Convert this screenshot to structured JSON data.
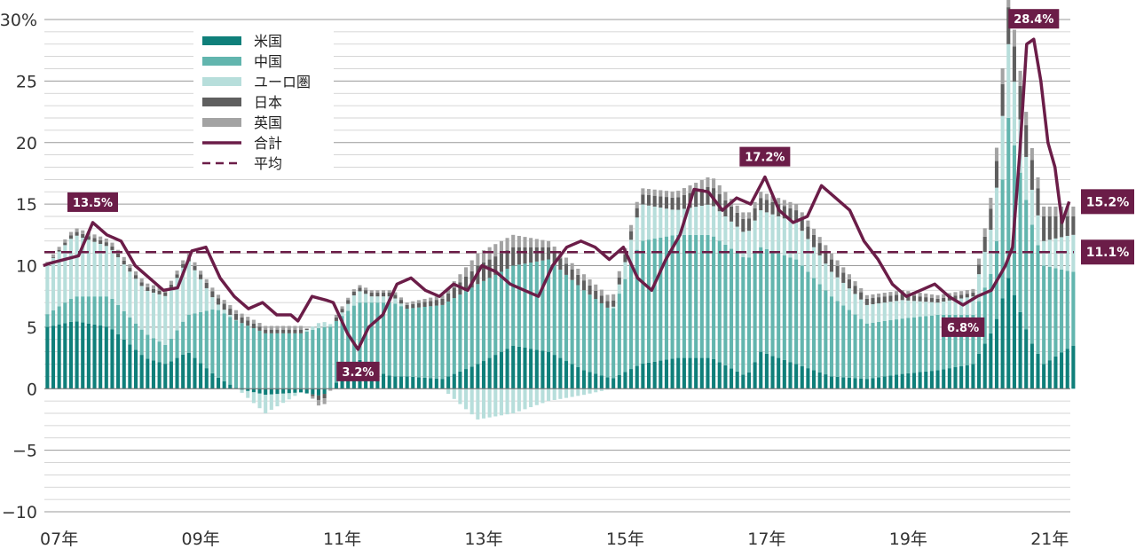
{
  "chart_data": {
    "type": "bar",
    "stacked": true,
    "y_unit_label": "30%",
    "ylim": [
      -10,
      30
    ],
    "yticks": [
      "30%",
      "25",
      "20",
      "15",
      "10",
      "5",
      "0",
      "−5",
      "−10"
    ],
    "ytick_values": [
      30,
      25,
      20,
      15,
      10,
      5,
      0,
      -5,
      -10
    ],
    "xtick_labels": [
      "07年",
      "09年",
      "11年",
      "13年",
      "15年",
      "17年",
      "19年",
      "21年"
    ],
    "xtick_years": [
      2007,
      2009,
      2011,
      2013,
      2015,
      2017,
      2019,
      2021
    ],
    "x_start": "2006-12",
    "x_end": "2021-06",
    "grid": true,
    "legend_position": "top-left",
    "colors": {
      "us": "#0f7f7a",
      "china": "#62b5ae",
      "euro": "#b7dedb",
      "japan": "#5f5f5f",
      "uk": "#a3a3a3",
      "total": "#6b1d48",
      "average": "#6b1d48",
      "callout_bg": "#6b1d48"
    },
    "legend": [
      {
        "key": "us",
        "label": "米国",
        "style": "bar"
      },
      {
        "key": "china",
        "label": "中国",
        "style": "bar"
      },
      {
        "key": "euro",
        "label": "ユーロ圏",
        "style": "bar"
      },
      {
        "key": "japan",
        "label": "日本",
        "style": "bar"
      },
      {
        "key": "uk",
        "label": "英国",
        "style": "bar"
      },
      {
        "key": "total",
        "label": "合計",
        "style": "line"
      },
      {
        "key": "average",
        "label": "平均",
        "style": "dashed"
      }
    ],
    "series": [
      {
        "key": "us",
        "name": "米国",
        "anchors": [
          [
            2006.9,
            5.0
          ],
          [
            2007.3,
            5.5
          ],
          [
            2007.8,
            5.0
          ],
          [
            2008.3,
            2.5
          ],
          [
            2008.6,
            2.0
          ],
          [
            2008.9,
            3.0
          ],
          [
            2009.3,
            1.0
          ],
          [
            2009.6,
            0.0
          ],
          [
            2010.0,
            -0.5
          ],
          [
            2010.5,
            -0.3
          ],
          [
            2010.8,
            -0.6
          ],
          [
            2011.0,
            0.5
          ],
          [
            2011.3,
            2.5
          ],
          [
            2011.5,
            1.5
          ],
          [
            2011.8,
            1.0
          ],
          [
            2012.0,
            1.0
          ],
          [
            2012.5,
            0.8
          ],
          [
            2013.0,
            2.0
          ],
          [
            2013.5,
            3.5
          ],
          [
            2014.0,
            3.0
          ],
          [
            2014.5,
            1.5
          ],
          [
            2014.9,
            0.8
          ],
          [
            2015.3,
            2.0
          ],
          [
            2015.8,
            2.5
          ],
          [
            2016.3,
            2.5
          ],
          [
            2016.8,
            1.0
          ],
          [
            2017.0,
            3.0
          ],
          [
            2017.5,
            2.0
          ],
          [
            2018.0,
            1.0
          ],
          [
            2018.5,
            0.8
          ],
          [
            2019.0,
            1.2
          ],
          [
            2019.5,
            1.5
          ],
          [
            2020.0,
            2.0
          ],
          [
            2020.3,
            5.0
          ],
          [
            2020.5,
            9.0
          ],
          [
            2020.8,
            4.0
          ],
          [
            2021.0,
            2.0
          ],
          [
            2021.4,
            3.5
          ]
        ]
      },
      {
        "key": "china",
        "name": "中国",
        "anchors": [
          [
            2006.9,
            1.0
          ],
          [
            2007.3,
            2.0
          ],
          [
            2007.8,
            2.5
          ],
          [
            2008.3,
            2.0
          ],
          [
            2008.6,
            1.5
          ],
          [
            2008.9,
            3.0
          ],
          [
            2009.3,
            5.5
          ],
          [
            2009.6,
            5.5
          ],
          [
            2010.0,
            4.5
          ],
          [
            2010.5,
            4.5
          ],
          [
            2010.8,
            5.0
          ],
          [
            2011.0,
            5.0
          ],
          [
            2011.3,
            4.5
          ],
          [
            2011.5,
            5.5
          ],
          [
            2011.8,
            6.0
          ],
          [
            2012.0,
            5.5
          ],
          [
            2012.5,
            6.0
          ],
          [
            2013.0,
            6.5
          ],
          [
            2013.5,
            6.5
          ],
          [
            2014.0,
            7.5
          ],
          [
            2014.5,
            6.5
          ],
          [
            2014.9,
            5.5
          ],
          [
            2015.3,
            10.0
          ],
          [
            2015.8,
            10.0
          ],
          [
            2016.3,
            10.0
          ],
          [
            2016.8,
            9.5
          ],
          [
            2017.0,
            8.5
          ],
          [
            2017.5,
            8.5
          ],
          [
            2018.0,
            6.5
          ],
          [
            2018.5,
            4.5
          ],
          [
            2019.0,
            4.5
          ],
          [
            2019.5,
            4.5
          ],
          [
            2020.0,
            4.0
          ],
          [
            2020.3,
            5.0
          ],
          [
            2020.5,
            13.0
          ],
          [
            2020.8,
            10.0
          ],
          [
            2021.0,
            8.0
          ],
          [
            2021.4,
            6.0
          ]
        ]
      },
      {
        "key": "euro",
        "name": "ユーロ圏",
        "anchors": [
          [
            2006.9,
            4.0
          ],
          [
            2007.3,
            5.0
          ],
          [
            2007.8,
            4.0
          ],
          [
            2008.3,
            3.5
          ],
          [
            2008.6,
            4.0
          ],
          [
            2008.9,
            4.5
          ],
          [
            2009.3,
            0.5
          ],
          [
            2009.6,
            0.0
          ],
          [
            2010.0,
            -1.5
          ],
          [
            2010.5,
            0.0
          ],
          [
            2010.8,
            0.5
          ],
          [
            2011.0,
            0.0
          ],
          [
            2011.3,
            1.0
          ],
          [
            2011.5,
            0.5
          ],
          [
            2011.8,
            0.5
          ],
          [
            2012.0,
            0.0
          ],
          [
            2012.5,
            0.0
          ],
          [
            2013.0,
            -2.5
          ],
          [
            2013.5,
            -2.0
          ],
          [
            2014.0,
            -1.0
          ],
          [
            2014.5,
            -0.5
          ],
          [
            2014.9,
            0.0
          ],
          [
            2015.3,
            3.0
          ],
          [
            2015.8,
            2.0
          ],
          [
            2016.3,
            2.5
          ],
          [
            2016.8,
            2.0
          ],
          [
            2017.0,
            3.0
          ],
          [
            2017.5,
            3.0
          ],
          [
            2018.0,
            2.0
          ],
          [
            2018.5,
            1.5
          ],
          [
            2019.0,
            1.5
          ],
          [
            2019.5,
            1.0
          ],
          [
            2020.0,
            1.5
          ],
          [
            2020.3,
            4.0
          ],
          [
            2020.5,
            6.0
          ],
          [
            2020.8,
            3.0
          ],
          [
            2021.0,
            2.0
          ],
          [
            2021.4,
            3.0
          ]
        ]
      },
      {
        "key": "japan",
        "name": "日本",
        "anchors": [
          [
            2006.9,
            0.0
          ],
          [
            2007.3,
            0.3
          ],
          [
            2007.8,
            0.3
          ],
          [
            2008.3,
            0.3
          ],
          [
            2008.6,
            0.3
          ],
          [
            2008.9,
            0.3
          ],
          [
            2009.3,
            0.5
          ],
          [
            2009.6,
            0.5
          ],
          [
            2010.0,
            0.3
          ],
          [
            2010.5,
            0.3
          ],
          [
            2010.8,
            -0.5
          ],
          [
            2011.0,
            0.3
          ],
          [
            2011.3,
            0.3
          ],
          [
            2011.5,
            0.3
          ],
          [
            2011.8,
            0.3
          ],
          [
            2012.0,
            0.3
          ],
          [
            2012.5,
            0.5
          ],
          [
            2013.0,
            1.5
          ],
          [
            2013.5,
            1.5
          ],
          [
            2014.0,
            1.0
          ],
          [
            2014.5,
            0.8
          ],
          [
            2014.9,
            0.5
          ],
          [
            2015.3,
            0.8
          ],
          [
            2015.8,
            1.0
          ],
          [
            2016.3,
            1.5
          ],
          [
            2016.8,
            1.0
          ],
          [
            2017.0,
            1.0
          ],
          [
            2017.5,
            1.0
          ],
          [
            2018.0,
            1.0
          ],
          [
            2018.5,
            0.5
          ],
          [
            2019.0,
            0.5
          ],
          [
            2019.5,
            0.3
          ],
          [
            2020.0,
            0.3
          ],
          [
            2020.3,
            2.0
          ],
          [
            2020.5,
            3.0
          ],
          [
            2020.8,
            2.5
          ],
          [
            2021.0,
            2.0
          ],
          [
            2021.4,
            1.5
          ]
        ]
      },
      {
        "key": "uk",
        "name": "英国",
        "anchors": [
          [
            2006.9,
            0.2
          ],
          [
            2007.3,
            0.3
          ],
          [
            2007.8,
            0.3
          ],
          [
            2008.3,
            0.3
          ],
          [
            2008.6,
            0.3
          ],
          [
            2008.9,
            0.3
          ],
          [
            2009.3,
            0.3
          ],
          [
            2009.6,
            0.3
          ],
          [
            2010.0,
            0.3
          ],
          [
            2010.5,
            0.3
          ],
          [
            2010.8,
            -0.6
          ],
          [
            2011.0,
            0.2
          ],
          [
            2011.3,
            0.2
          ],
          [
            2011.5,
            0.2
          ],
          [
            2011.8,
            0.2
          ],
          [
            2012.0,
            0.2
          ],
          [
            2012.5,
            0.3
          ],
          [
            2013.0,
            1.0
          ],
          [
            2013.5,
            1.0
          ],
          [
            2014.0,
            0.5
          ],
          [
            2014.5,
            0.5
          ],
          [
            2014.9,
            0.5
          ],
          [
            2015.3,
            0.5
          ],
          [
            2015.8,
            0.5
          ],
          [
            2016.3,
            0.8
          ],
          [
            2016.8,
            0.5
          ],
          [
            2017.0,
            0.5
          ],
          [
            2017.5,
            0.5
          ],
          [
            2018.0,
            0.5
          ],
          [
            2018.5,
            0.3
          ],
          [
            2019.0,
            0.3
          ],
          [
            2019.5,
            0.3
          ],
          [
            2020.0,
            0.3
          ],
          [
            2020.3,
            1.0
          ],
          [
            2020.5,
            1.5
          ],
          [
            2020.8,
            1.0
          ],
          [
            2021.0,
            0.8
          ],
          [
            2021.4,
            0.8
          ]
        ]
      }
    ],
    "total": [
      [
        2006.9,
        10.0
      ],
      [
        2007.0,
        10.2
      ],
      [
        2007.2,
        10.5
      ],
      [
        2007.4,
        10.8
      ],
      [
        2007.6,
        13.5
      ],
      [
        2007.8,
        12.5
      ],
      [
        2008.0,
        12.0
      ],
      [
        2008.2,
        10.0
      ],
      [
        2008.4,
        9.0
      ],
      [
        2008.6,
        8.0
      ],
      [
        2008.8,
        8.2
      ],
      [
        2009.0,
        11.2
      ],
      [
        2009.2,
        11.5
      ],
      [
        2009.4,
        9.0
      ],
      [
        2009.6,
        7.5
      ],
      [
        2009.8,
        6.5
      ],
      [
        2010.0,
        7.0
      ],
      [
        2010.2,
        6.0
      ],
      [
        2010.4,
        6.0
      ],
      [
        2010.5,
        5.5
      ],
      [
        2010.7,
        7.5
      ],
      [
        2010.9,
        7.2
      ],
      [
        2011.0,
        7.0
      ],
      [
        2011.2,
        4.5
      ],
      [
        2011.35,
        3.2
      ],
      [
        2011.5,
        5.0
      ],
      [
        2011.7,
        6.0
      ],
      [
        2011.9,
        8.5
      ],
      [
        2012.1,
        9.0
      ],
      [
        2012.3,
        8.0
      ],
      [
        2012.5,
        7.5
      ],
      [
        2012.7,
        8.5
      ],
      [
        2012.9,
        8.0
      ],
      [
        2013.1,
        10.0
      ],
      [
        2013.3,
        9.5
      ],
      [
        2013.5,
        8.5
      ],
      [
        2013.7,
        8.0
      ],
      [
        2013.9,
        7.5
      ],
      [
        2014.1,
        10.0
      ],
      [
        2014.3,
        11.5
      ],
      [
        2014.5,
        12.0
      ],
      [
        2014.7,
        11.5
      ],
      [
        2014.9,
        10.5
      ],
      [
        2015.1,
        11.5
      ],
      [
        2015.3,
        9.0
      ],
      [
        2015.5,
        8.0
      ],
      [
        2015.7,
        10.5
      ],
      [
        2015.9,
        12.5
      ],
      [
        2016.1,
        16.2
      ],
      [
        2016.3,
        16.0
      ],
      [
        2016.5,
        14.5
      ],
      [
        2016.7,
        15.5
      ],
      [
        2016.9,
        15.0
      ],
      [
        2017.1,
        17.2
      ],
      [
        2017.3,
        14.5
      ],
      [
        2017.5,
        13.5
      ],
      [
        2017.7,
        14.0
      ],
      [
        2017.9,
        16.5
      ],
      [
        2018.1,
        15.5
      ],
      [
        2018.3,
        14.5
      ],
      [
        2018.5,
        12.0
      ],
      [
        2018.7,
        10.5
      ],
      [
        2018.9,
        8.5
      ],
      [
        2019.1,
        7.5
      ],
      [
        2019.3,
        8.0
      ],
      [
        2019.5,
        8.5
      ],
      [
        2019.7,
        7.5
      ],
      [
        2019.9,
        6.8
      ],
      [
        2020.1,
        7.5
      ],
      [
        2020.3,
        8.0
      ],
      [
        2020.5,
        10.0
      ],
      [
        2020.6,
        11.5
      ],
      [
        2020.7,
        19.0
      ],
      [
        2020.8,
        28.0
      ],
      [
        2020.9,
        28.4
      ],
      [
        2021.0,
        25.0
      ],
      [
        2021.1,
        20.0
      ],
      [
        2021.2,
        18.0
      ],
      [
        2021.3,
        13.5
      ],
      [
        2021.4,
        15.2
      ]
    ],
    "average": 11.1,
    "annotations": [
      {
        "text": "13.5%",
        "year": 2007.6,
        "value": 13.5
      },
      {
        "text": "3.2%",
        "year": 2011.35,
        "value": 3.2
      },
      {
        "text": "17.2%",
        "year": 2017.1,
        "value": 17.2
      },
      {
        "text": "6.8%",
        "year": 2019.9,
        "value": 6.8
      },
      {
        "text": "28.4%",
        "year": 2020.9,
        "value": 28.4
      }
    ],
    "end_labels": [
      {
        "text": "15.2%",
        "value": 15.2
      },
      {
        "text": "11.1%",
        "value": 11.1
      }
    ]
  }
}
